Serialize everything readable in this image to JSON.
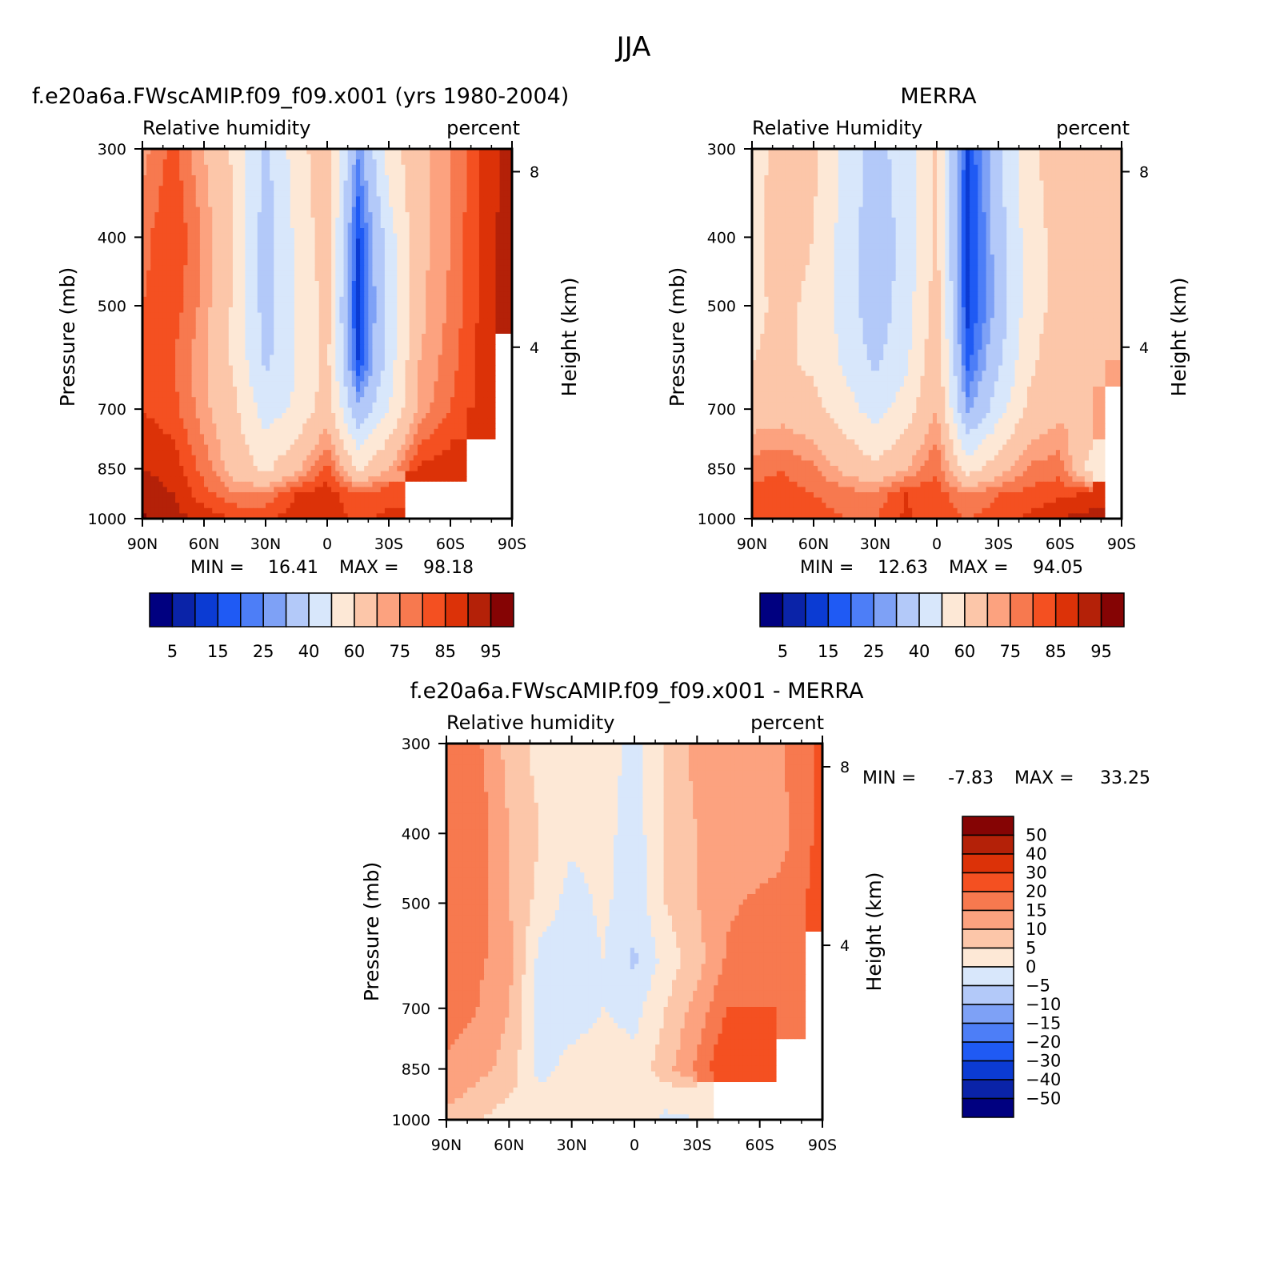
{
  "figure_title": "JJA",
  "colors": {
    "levels": [
      "#000080",
      "#0a23a8",
      "#0b3bd3",
      "#1f5af4",
      "#4d7ef7",
      "#7ea1f6",
      "#b3c9f9",
      "#d8e7fb",
      "#fde8d6",
      "#fcc6a9",
      "#fca27f",
      "#f7794f",
      "#f45021",
      "#dc3208",
      "#b42108",
      "#850404"
    ],
    "white": "#ffffff"
  },
  "panels": {
    "model": {
      "title": "f.e20a6a.FWscAMIP.f09_f09.x001 (yrs 1980-2004)",
      "left_label": "Relative humidity",
      "right_label": "percent",
      "ylabel": "Pressure (mb)",
      "y2label": "Height (km)",
      "stats": {
        "min_label": "MIN =",
        "min": "16.41",
        "max_label": "MAX =",
        "max": "98.18"
      },
      "colorbar_ticks": [
        "5",
        "15",
        "25",
        "40",
        "60",
        "75",
        "85",
        "95"
      ]
    },
    "obs": {
      "title": "MERRA",
      "left_label": "Relative Humidity",
      "right_label": "percent",
      "ylabel": "Pressure (mb)",
      "y2label": "Height (km)",
      "stats": {
        "min_label": "MIN =",
        "min": "12.63",
        "max_label": "MAX =",
        "max": "94.05"
      },
      "colorbar_ticks": [
        "5",
        "15",
        "25",
        "40",
        "60",
        "75",
        "85",
        "95"
      ]
    },
    "diff": {
      "title": "f.e20a6a.FWscAMIP.f09_f09.x001 - MERRA",
      "left_label": "Relative humidity",
      "right_label": "percent",
      "ylabel": "Pressure (mb)",
      "y2label": "Height (km)",
      "stats": {
        "min_label": "MIN =",
        "min": "-7.83",
        "max_label": "MAX =",
        "max": "33.25"
      },
      "colorbar_ticks": [
        "50",
        "40",
        "30",
        "20",
        "15",
        "10",
        "5",
        "0",
        "-5",
        "-10",
        "-15",
        "-20",
        "-30",
        "-40",
        "-50"
      ]
    }
  },
  "chart_data": [
    {
      "type": "heatmap",
      "title": "f.e20a6a.FWscAMIP.f09_f09.x001 (yrs 1980-2004)",
      "variable": "Relative humidity",
      "units": "percent",
      "xlabel": "",
      "ylabel": "Pressure (mb)",
      "y2label": "Height (km)",
      "x_ticks": [
        "90N",
        "60N",
        "30N",
        "0",
        "30S",
        "60S",
        "90S"
      ],
      "y_ticks": [
        300,
        400,
        500,
        700,
        850,
        1000
      ],
      "y2_ticks": [
        8,
        4
      ],
      "ylim": [
        1000,
        300
      ],
      "yscale": "log",
      "contour_levels": [
        5,
        10,
        15,
        20,
        25,
        30,
        40,
        50,
        60,
        70,
        75,
        80,
        85,
        90,
        95
      ],
      "latitudes": [
        90,
        75,
        60,
        45,
        30,
        15,
        0,
        -15,
        -30,
        -45,
        -60,
        -75,
        -90
      ],
      "pressures": [
        300,
        400,
        500,
        600,
        700,
        850,
        925,
        1000
      ],
      "values": [
        [
          73,
          82,
          70,
          58,
          38,
          55,
          68,
          26,
          55,
          68,
          75,
          85,
          93
        ],
        [
          78,
          85,
          74,
          60,
          34,
          52,
          66,
          15,
          45,
          68,
          75,
          86,
          94
        ],
        [
          80,
          83,
          73,
          58,
          35,
          50,
          64,
          12,
          45,
          68,
          76,
          86,
          94
        ],
        [
          82,
          80,
          71,
          58,
          38,
          50,
          63,
          15,
          45,
          70,
          78,
          87,
          null
        ],
        [
          85,
          82,
          72,
          62,
          45,
          52,
          65,
          32,
          50,
          72,
          80,
          86,
          null
        ],
        [
          90,
          88,
          78,
          66,
          58,
          68,
          82,
          58,
          70,
          86,
          88,
          null,
          null
        ],
        [
          93,
          90,
          82,
          76,
          76,
          85,
          88,
          80,
          84,
          null,
          null,
          null,
          null
        ],
        [
          96,
          92,
          88,
          85,
          84,
          88,
          88,
          84,
          86,
          null,
          null,
          null,
          null
        ]
      ],
      "min": 16.41,
      "max": 98.18
    },
    {
      "type": "heatmap",
      "title": "MERRA",
      "variable": "Relative Humidity",
      "units": "percent",
      "xlabel": "",
      "ylabel": "Pressure (mb)",
      "y2label": "Height (km)",
      "x_ticks": [
        "90N",
        "60N",
        "30N",
        "0",
        "30S",
        "60S",
        "90S"
      ],
      "y_ticks": [
        300,
        400,
        500,
        700,
        850,
        1000
      ],
      "y2_ticks": [
        8,
        4
      ],
      "ylim": [
        1000,
        300
      ],
      "yscale": "log",
      "contour_levels": [
        5,
        10,
        15,
        20,
        25,
        30,
        40,
        50,
        60,
        70,
        75,
        80,
        85,
        90,
        95
      ],
      "latitudes": [
        90,
        75,
        60,
        45,
        30,
        15,
        0,
        -15,
        -30,
        -45,
        -60,
        -75,
        -90
      ],
      "pressures": [
        300,
        400,
        500,
        600,
        700,
        850,
        925,
        1000
      ],
      "values": [
        [
          55,
          65,
          62,
          48,
          36,
          45,
          62,
          14,
          38,
          58,
          65,
          68,
          70
        ],
        [
          58,
          64,
          60,
          46,
          33,
          44,
          62,
          12,
          35,
          55,
          64,
          68,
          70
        ],
        [
          58,
          62,
          58,
          46,
          33,
          45,
          65,
          13,
          33,
          55,
          64,
          68,
          70
        ],
        [
          60,
          62,
          58,
          48,
          38,
          48,
          68,
          18,
          38,
          58,
          66,
          68,
          70
        ],
        [
          65,
          66,
          63,
          55,
          45,
          55,
          70,
          28,
          45,
          62,
          68,
          70,
          null
        ],
        [
          78,
          80,
          76,
          68,
          62,
          70,
          80,
          55,
          66,
          76,
          78,
          55,
          null
        ],
        [
          82,
          82,
          80,
          78,
          76,
          85,
          82,
          76,
          80,
          82,
          84,
          86,
          null
        ],
        [
          84,
          84,
          82,
          80,
          80,
          86,
          82,
          80,
          82,
          86,
          90,
          92,
          null
        ]
      ],
      "min": 12.63,
      "max": 94.05
    },
    {
      "type": "heatmap",
      "title": "f.e20a6a.FWscAMIP.f09_f09.x001 - MERRA",
      "variable": "Relative humidity",
      "units": "percent",
      "xlabel": "",
      "ylabel": "Pressure (mb)",
      "y2label": "Height (km)",
      "x_ticks": [
        "90N",
        "60N",
        "30N",
        "0",
        "30S",
        "60S",
        "90S"
      ],
      "y_ticks": [
        300,
        400,
        500,
        700,
        850,
        1000
      ],
      "y2_ticks": [
        8,
        4
      ],
      "ylim": [
        1000,
        300
      ],
      "yscale": "log",
      "contour_levels": [
        -50,
        -40,
        -30,
        -20,
        -15,
        -10,
        -5,
        0,
        5,
        10,
        15,
        20,
        30,
        40,
        50
      ],
      "latitudes": [
        90,
        75,
        60,
        45,
        30,
        15,
        0,
        -15,
        -30,
        -45,
        -60,
        -75,
        -90
      ],
      "pressures": [
        300,
        400,
        500,
        600,
        700,
        850,
        925,
        1000
      ],
      "values": [
        [
          16,
          16,
          8,
          3,
          2,
          3,
          -2,
          5,
          12,
          10,
          12,
          16,
          22
        ],
        [
          18,
          18,
          10,
          5,
          1,
          2,
          -3,
          6,
          10,
          12,
          12,
          15,
          22
        ],
        [
          20,
          18,
          10,
          3,
          -2,
          1,
          -3,
          5,
          10,
          14,
          16,
          16,
          24
        ],
        [
          20,
          16,
          12,
          -2,
          -3,
          0,
          -6,
          2,
          8,
          16,
          20,
          18,
          null
        ],
        [
          18,
          15,
          10,
          -3,
          -3,
          0,
          -2,
          5,
          12,
          20,
          20,
          18,
          null
        ],
        [
          14,
          12,
          8,
          -2,
          2,
          3,
          2,
          8,
          16,
          26,
          28,
          null,
          null
        ],
        [
          12,
          8,
          5,
          2,
          3,
          2,
          2,
          2,
          2,
          null,
          null,
          null,
          null
        ],
        [
          8,
          5,
          3,
          2,
          2,
          1,
          2,
          -1,
          0,
          null,
          null,
          null,
          null
        ]
      ],
      "min": -7.83,
      "max": 33.25
    }
  ]
}
